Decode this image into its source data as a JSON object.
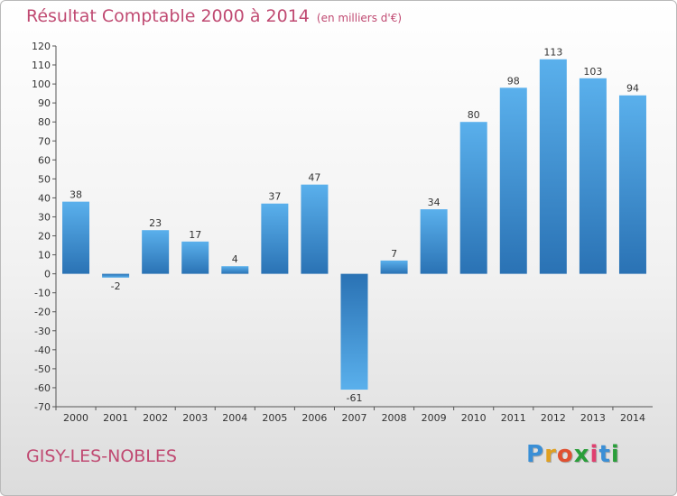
{
  "header": {
    "title": "Résultat Comptable 2000 à 2014",
    "subtitle": "(en milliers d'€)"
  },
  "footer": {
    "city": "GISY-LES-NOBLES",
    "brand_letters": [
      "P",
      "r",
      "o",
      "x",
      "i",
      "t",
      "i"
    ],
    "brand_colors": [
      "#3a8fd6",
      "#e0a020",
      "#e05030",
      "#2a9e3a",
      "#e04070",
      "#3a8fd6",
      "#2a9e3a"
    ]
  },
  "chart_data": {
    "type": "bar",
    "title": "Résultat Comptable 2000 à 2014",
    "subtitle": "(en milliers d'€)",
    "categories": [
      "2000",
      "2001",
      "2002",
      "2003",
      "2004",
      "2005",
      "2006",
      "2007",
      "2008",
      "2009",
      "2010",
      "2011",
      "2012",
      "2013",
      "2014"
    ],
    "values": [
      38,
      -2,
      23,
      17,
      4,
      37,
      47,
      -61,
      7,
      34,
      80,
      98,
      113,
      103,
      94
    ],
    "ylim": [
      -70,
      120
    ],
    "yticks": [
      120,
      110,
      100,
      90,
      80,
      70,
      60,
      50,
      40,
      30,
      20,
      10,
      0,
      -10,
      -20,
      -30,
      -40,
      -50,
      -60,
      -70
    ],
    "xlabel": "",
    "ylabel": "",
    "grid": false,
    "bar_color": "#4a9fdf",
    "bar_color_dark": "#2a70b0"
  }
}
